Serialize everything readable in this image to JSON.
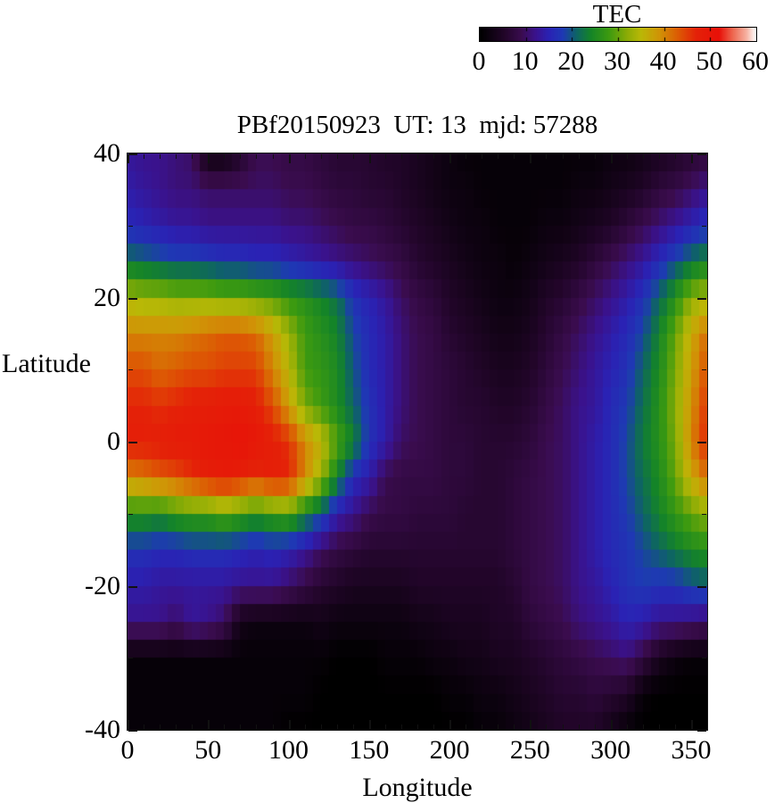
{
  "colorbar": {
    "title": "TEC",
    "tick_labels": [
      "0",
      "10",
      "20",
      "30",
      "40",
      "50",
      "60"
    ],
    "min": 0,
    "max": 60
  },
  "plot": {
    "title": "PBf20150923  UT: 13  mjd: 57288",
    "xlabel": "Longitude",
    "ylabel": "Latitude",
    "x_tick_labels": [
      "0",
      "50",
      "100",
      "150",
      "200",
      "250",
      "300",
      "350"
    ],
    "x_tick_values": [
      0,
      50,
      100,
      150,
      200,
      250,
      300,
      350
    ],
    "x_minor_interval": 10,
    "y_tick_labels": [
      "40",
      "20",
      "0",
      "-20",
      "-40"
    ],
    "y_tick_values": [
      40,
      20,
      0,
      -20,
      -40
    ],
    "y_minor_interval": 10
  },
  "chart_data": {
    "type": "heatmap",
    "title": "PBf20150923  UT: 13  mjd: 57288",
    "xlabel": "Longitude",
    "ylabel": "Latitude",
    "colorbar_label": "TEC",
    "xlim": [
      0,
      360
    ],
    "ylim": [
      -40,
      40
    ],
    "zlim": [
      0,
      60
    ],
    "cell_deg_lon": 5,
    "cell_deg_lat": 2.5,
    "grid_lons": [
      0,
      10,
      20,
      30,
      40,
      50,
      60,
      70,
      80,
      90,
      100,
      110,
      120,
      130,
      140,
      150,
      160,
      170,
      180,
      190,
      200,
      210,
      220,
      230,
      240,
      250,
      260,
      270,
      280,
      290,
      300,
      310,
      320,
      330,
      340,
      350,
      360
    ],
    "grid_lats": [
      40,
      35,
      30,
      25,
      20,
      15,
      10,
      5,
      0,
      -5,
      -10,
      -15,
      -20,
      -25,
      -30,
      -35,
      -40
    ],
    "tec_values": [
      [
        13,
        12,
        12,
        11,
        10,
        2,
        2,
        5,
        9,
        9,
        8,
        8,
        7,
        6,
        6,
        6,
        5,
        5,
        4,
        3,
        2,
        1,
        1,
        1,
        1,
        1,
        1,
        1,
        1,
        1,
        2,
        2,
        3,
        4,
        5,
        6,
        7
      ],
      [
        14,
        13,
        12,
        11,
        11,
        10,
        10,
        10,
        10,
        10,
        9,
        9,
        8,
        7,
        7,
        6,
        6,
        5,
        4,
        3,
        2,
        2,
        1,
        1,
        1,
        1,
        1,
        1,
        2,
        2,
        3,
        4,
        5,
        7,
        8,
        10,
        12
      ],
      [
        16,
        15,
        14,
        13,
        13,
        12,
        12,
        12,
        12,
        12,
        11,
        11,
        10,
        9,
        8,
        8,
        7,
        6,
        5,
        4,
        3,
        2,
        2,
        1,
        1,
        1,
        2,
        2,
        3,
        4,
        5,
        7,
        9,
        11,
        13,
        15,
        17
      ],
      [
        22,
        21,
        20,
        19,
        19,
        18,
        17,
        17,
        16,
        16,
        15,
        14,
        13,
        12,
        11,
        10,
        9,
        8,
        6,
        5,
        4,
        3,
        2,
        2,
        1,
        2,
        3,
        4,
        5,
        7,
        9,
        11,
        13,
        16,
        19,
        22,
        24
      ],
      [
        34,
        33,
        33,
        32,
        32,
        32,
        31,
        31,
        30,
        29,
        27,
        26,
        24,
        22,
        17,
        15,
        13,
        10,
        8,
        7,
        5,
        4,
        3,
        2,
        2,
        3,
        5,
        6,
        8,
        10,
        12,
        14,
        17,
        21,
        26,
        32,
        34
      ],
      [
        40,
        40,
        40,
        40,
        41,
        42,
        43,
        43,
        42,
        38,
        33,
        28,
        26,
        24,
        19,
        16,
        14,
        11,
        9,
        8,
        6,
        5,
        4,
        3,
        3,
        4,
        6,
        8,
        10,
        12,
        14,
        16,
        19,
        24,
        30,
        37,
        42
      ],
      [
        44,
        44,
        42,
        43,
        44,
        44,
        45,
        45,
        45,
        40,
        35,
        28,
        27,
        25,
        20,
        16,
        14,
        11,
        9,
        8,
        7,
        6,
        5,
        4,
        4,
        5,
        7,
        9,
        11,
        13,
        15,
        17,
        21,
        25,
        31,
        38,
        44
      ],
      [
        47,
        47,
        46,
        47,
        48,
        48,
        49,
        49,
        48,
        44,
        38,
        31,
        28,
        25,
        21,
        17,
        14,
        11,
        9,
        8,
        7,
        6,
        6,
        5,
        5,
        6,
        8,
        10,
        12,
        13,
        16,
        18,
        22,
        26,
        32,
        39,
        46
      ],
      [
        48,
        48,
        48,
        49,
        49,
        50,
        50,
        51,
        50,
        48,
        46,
        40,
        36,
        29,
        24,
        17,
        14,
        10,
        9,
        8,
        7,
        7,
        6,
        6,
        6,
        7,
        9,
        10,
        12,
        14,
        16,
        19,
        23,
        26,
        31,
        40,
        47
      ],
      [
        40,
        41,
        43,
        44,
        46,
        48,
        49,
        48,
        46,
        48,
        47,
        40,
        33,
        24,
        16,
        14,
        9,
        8,
        8,
        8,
        7,
        7,
        6,
        6,
        7,
        8,
        9,
        10,
        12,
        14,
        16,
        19,
        22,
        25,
        30,
        37,
        42
      ],
      [
        26,
        26,
        25,
        27,
        28,
        28,
        30,
        28,
        26,
        28,
        29,
        24,
        20,
        14,
        12,
        9,
        8,
        8,
        7,
        7,
        7,
        6,
        6,
        6,
        7,
        8,
        9,
        10,
        12,
        14,
        16,
        18,
        21,
        24,
        27,
        30,
        32
      ],
      [
        17,
        17,
        16,
        16,
        17,
        17,
        17,
        16,
        15,
        16,
        15,
        13,
        10,
        8,
        7,
        6,
        6,
        6,
        6,
        6,
        6,
        6,
        6,
        6,
        7,
        8,
        9,
        10,
        12,
        14,
        16,
        17,
        19,
        21,
        23,
        25,
        26
      ],
      [
        14,
        14,
        13,
        13,
        13,
        13,
        13,
        12,
        12,
        12,
        10,
        8,
        6,
        5,
        4,
        4,
        4,
        4,
        5,
        5,
        5,
        5,
        5,
        5,
        6,
        8,
        9,
        10,
        12,
        13,
        15,
        17,
        18,
        17,
        17,
        19,
        20
      ],
      [
        12,
        12,
        12,
        10,
        13,
        12,
        10,
        3,
        2,
        2,
        2,
        2,
        3,
        2,
        2,
        2,
        2,
        2,
        3,
        3,
        4,
        4,
        4,
        5,
        5,
        7,
        8,
        9,
        11,
        12,
        13,
        15,
        14,
        12,
        12,
        11,
        10
      ],
      [
        1,
        1,
        1,
        1,
        1,
        1,
        1,
        1,
        1,
        1,
        1,
        1,
        1,
        0,
        0,
        0,
        1,
        1,
        1,
        2,
        2,
        3,
        3,
        4,
        4,
        5,
        6,
        7,
        8,
        9,
        10,
        11,
        8,
        4,
        2,
        1,
        1
      ],
      [
        1,
        1,
        1,
        1,
        1,
        1,
        1,
        1,
        1,
        1,
        1,
        1,
        0,
        0,
        0,
        0,
        0,
        0,
        0,
        0,
        1,
        1,
        2,
        2,
        3,
        4,
        5,
        6,
        6,
        7,
        6,
        5,
        1,
        0,
        0,
        0,
        0
      ],
      [
        1,
        1,
        1,
        1,
        1,
        1,
        1,
        1,
        1,
        1,
        0,
        0,
        0,
        0,
        0,
        0,
        0,
        0,
        0,
        0,
        0,
        0,
        1,
        1,
        2,
        3,
        4,
        5,
        5,
        5,
        3,
        1,
        0,
        0,
        0,
        0,
        0
      ]
    ],
    "palette_stops": [
      {
        "tec": 0,
        "color": "#000000"
      },
      {
        "tec": 5,
        "color": "#200527"
      },
      {
        "tec": 9,
        "color": "#3a0c4e"
      },
      {
        "tec": 12,
        "color": "#3a128c"
      },
      {
        "tec": 15,
        "color": "#2a22b4"
      },
      {
        "tec": 18,
        "color": "#1e39b4"
      },
      {
        "tec": 21,
        "color": "#0e6464"
      },
      {
        "tec": 24,
        "color": "#148428"
      },
      {
        "tec": 28,
        "color": "#3c9a10"
      },
      {
        "tec": 32,
        "color": "#8cac06"
      },
      {
        "tec": 35,
        "color": "#bab806"
      },
      {
        "tec": 39,
        "color": "#d09406"
      },
      {
        "tec": 43,
        "color": "#dc5c04"
      },
      {
        "tec": 47,
        "color": "#e42208"
      },
      {
        "tec": 52,
        "color": "#e81008"
      },
      {
        "tec": 55,
        "color": "#ee6850"
      },
      {
        "tec": 58,
        "color": "#f6b2a2"
      },
      {
        "tec": 60,
        "color": "#ffffff"
      }
    ]
  }
}
